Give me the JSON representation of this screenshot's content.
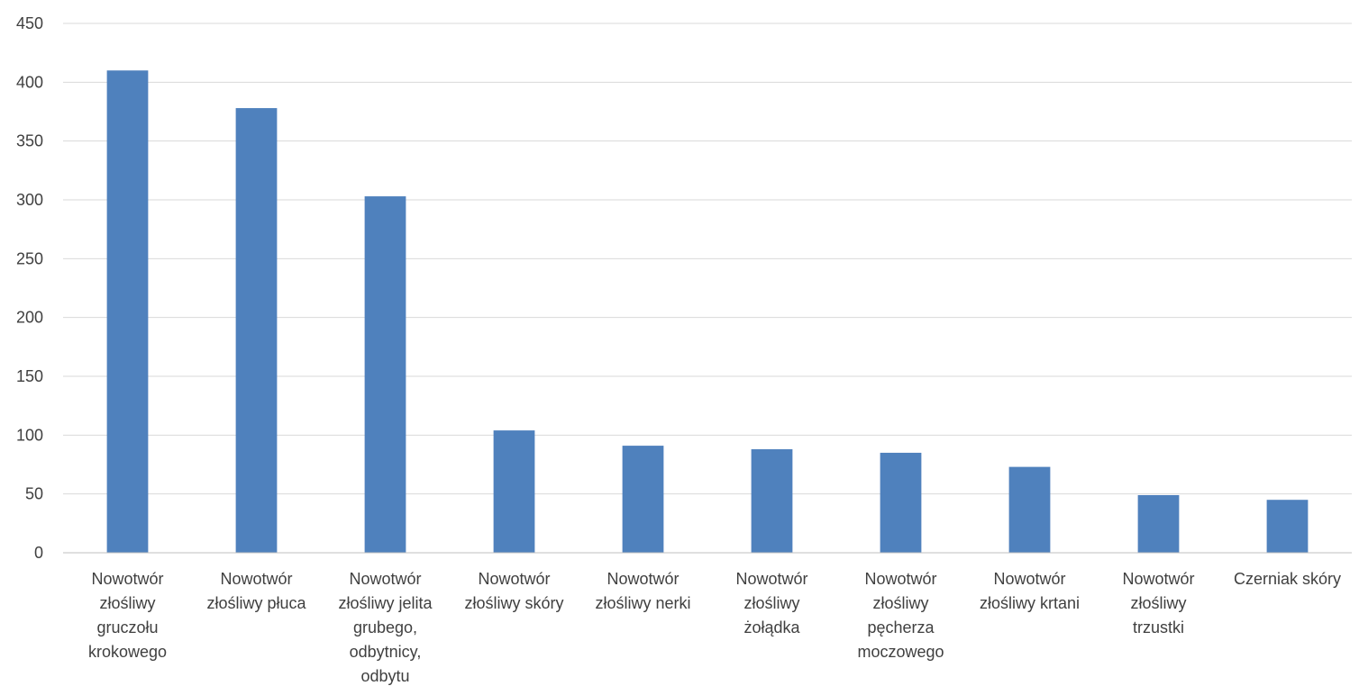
{
  "chart_data": {
    "type": "bar",
    "title": "",
    "xlabel": "",
    "ylabel": "",
    "ylim": [
      0,
      450
    ],
    "ytick_step": 50,
    "grid": true,
    "legend": "none",
    "bar_color": "#4f81bd",
    "categories": [
      [
        "Nowotwór",
        "złośliwy",
        "gruczołu",
        "krokowego"
      ],
      [
        "Nowotwór",
        "złośliwy płuca"
      ],
      [
        "Nowotwór",
        "złośliwy jelita",
        "grubego,",
        "odbytnicy,",
        "odbytu"
      ],
      [
        "Nowotwór",
        "złośliwy skóry"
      ],
      [
        "Nowotwór",
        "złośliwy nerki"
      ],
      [
        "Nowotwór",
        "złośliwy",
        "żołądka"
      ],
      [
        "Nowotwór",
        "złośliwy",
        "pęcherza",
        "moczowego"
      ],
      [
        "Nowotwór",
        "złośliwy krtani"
      ],
      [
        "Nowotwór",
        "złośliwy",
        "trzustki"
      ],
      [
        "Czerniak skóry"
      ]
    ],
    "values": [
      410,
      378,
      303,
      104,
      91,
      88,
      85,
      73,
      49,
      45
    ]
  }
}
